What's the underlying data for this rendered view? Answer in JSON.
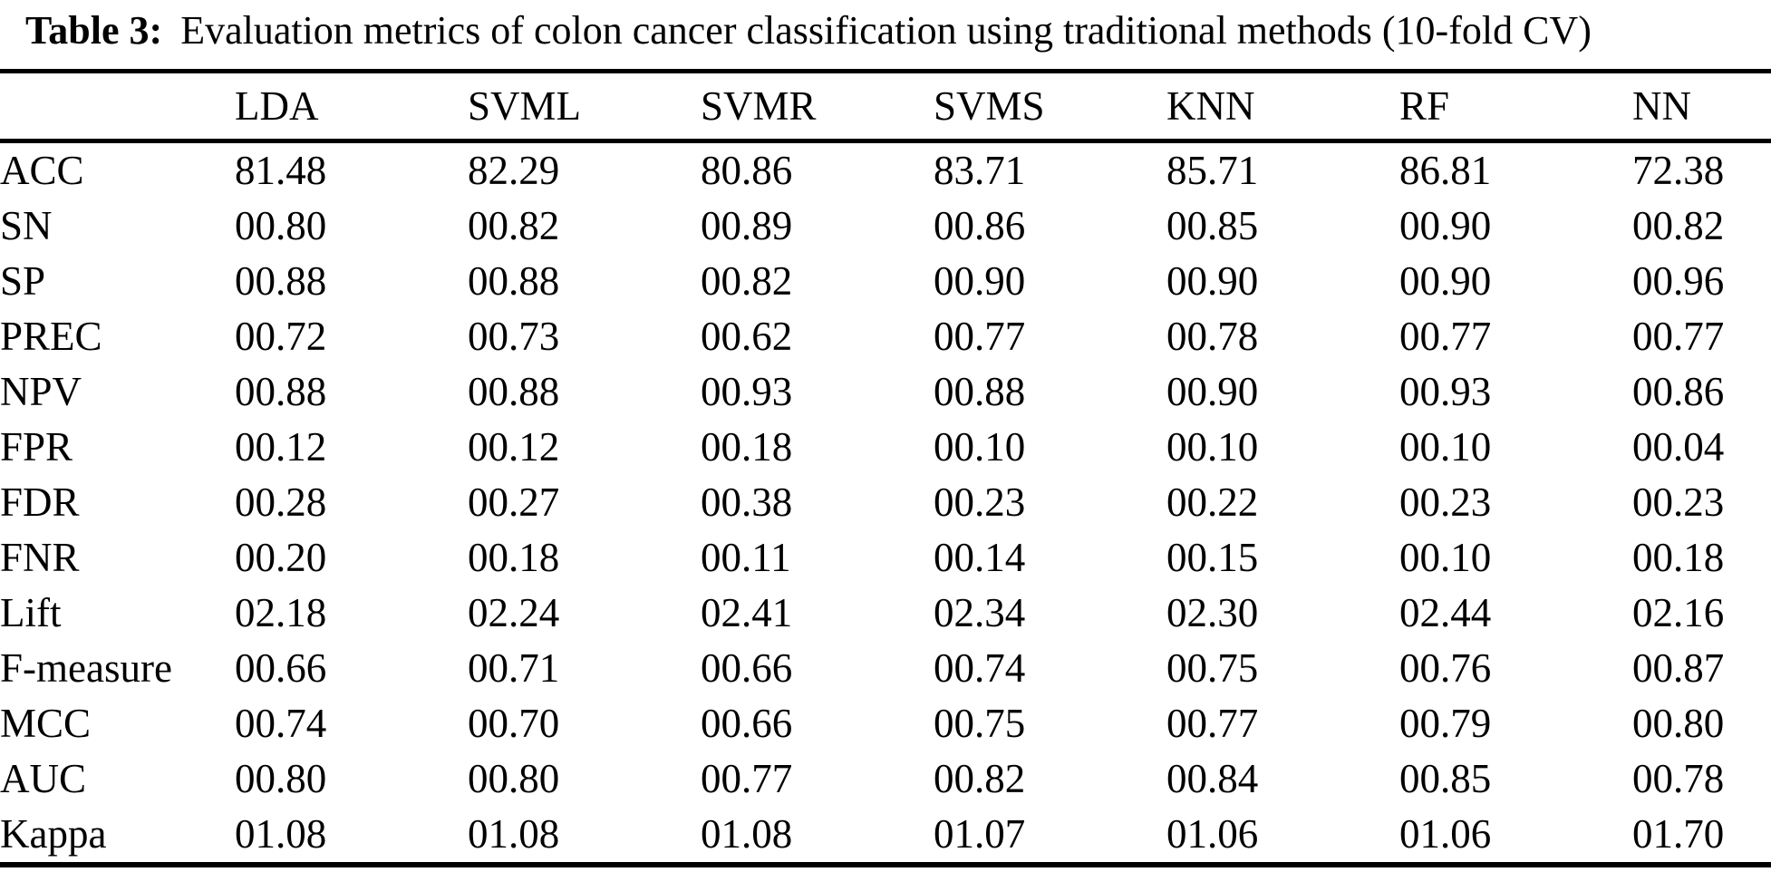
{
  "title": {
    "label": "Table 3:",
    "text": "Evaluation metrics of colon cancer classification using traditional methods (10-fold CV)"
  },
  "table": {
    "columns": [
      "LDA",
      "SVML",
      "SVMR",
      "SVMS",
      "KNN",
      "RF",
      "NN"
    ],
    "rows": [
      {
        "label": "ACC",
        "values": [
          "81.48",
          "82.29",
          "80.86",
          "83.71",
          "85.71",
          "86.81",
          "72.38"
        ],
        "bold": 5
      },
      {
        "label": "SN",
        "values": [
          "00.80",
          "00.82",
          "00.89",
          "00.86",
          "00.85",
          "00.90",
          "00.82"
        ],
        "bold": 5
      },
      {
        "label": "SP",
        "values": [
          "00.88",
          "00.88",
          "00.82",
          "00.90",
          "00.90",
          "00.90",
          "00.96"
        ],
        "bold": 6
      },
      {
        "label": "PREC",
        "values": [
          "00.72",
          "00.73",
          "00.62",
          "00.77",
          "00.78",
          "00.77",
          "00.77"
        ],
        "bold": 4
      },
      {
        "label": "NPV",
        "values": [
          "00.88",
          "00.88",
          "00.93",
          "00.88",
          "00.90",
          "00.93",
          "00.86"
        ],
        "bold": 5
      },
      {
        "label": "FPR",
        "values": [
          "00.12",
          "00.12",
          "00.18",
          "00.10",
          "00.10",
          "00.10",
          "00.04"
        ],
        "bold": 2
      },
      {
        "label": "FDR",
        "values": [
          "00.28",
          "00.27",
          "00.38",
          "00.23",
          "00.22",
          "00.23",
          "00.23"
        ],
        "bold": 2
      },
      {
        "label": "FNR",
        "values": [
          "00.20",
          "00.18",
          "00.11",
          "00.14",
          "00.15",
          "00.10",
          "00.18"
        ],
        "bold": 0
      },
      {
        "label": "Lift",
        "values": [
          "02.18",
          "02.24",
          "02.41",
          "02.34",
          "02.30",
          "02.44",
          "02.16"
        ],
        "bold": 5
      },
      {
        "label": "F-measure",
        "values": [
          "00.66",
          "00.71",
          "00.66",
          "00.74",
          "00.75",
          "00.76",
          "00.87"
        ],
        "bold": 6
      },
      {
        "label": "MCC",
        "values": [
          "00.74",
          "00.70",
          "00.66",
          "00.75",
          "00.77",
          "00.79",
          "00.80"
        ],
        "bold": 6
      },
      {
        "label": "AUC",
        "values": [
          "00.80",
          "00.80",
          "00.77",
          "00.82",
          "00.84",
          "00.85",
          "00.78"
        ],
        "bold": 5
      },
      {
        "label": "Kappa",
        "values": [
          "01.08",
          "01.08",
          "01.08",
          "01.07",
          "01.06",
          "01.06",
          "01.70"
        ],
        "bold": 6
      }
    ]
  },
  "colors": {
    "text": "#000000",
    "background": "#ffffff",
    "rule": "#000000"
  }
}
